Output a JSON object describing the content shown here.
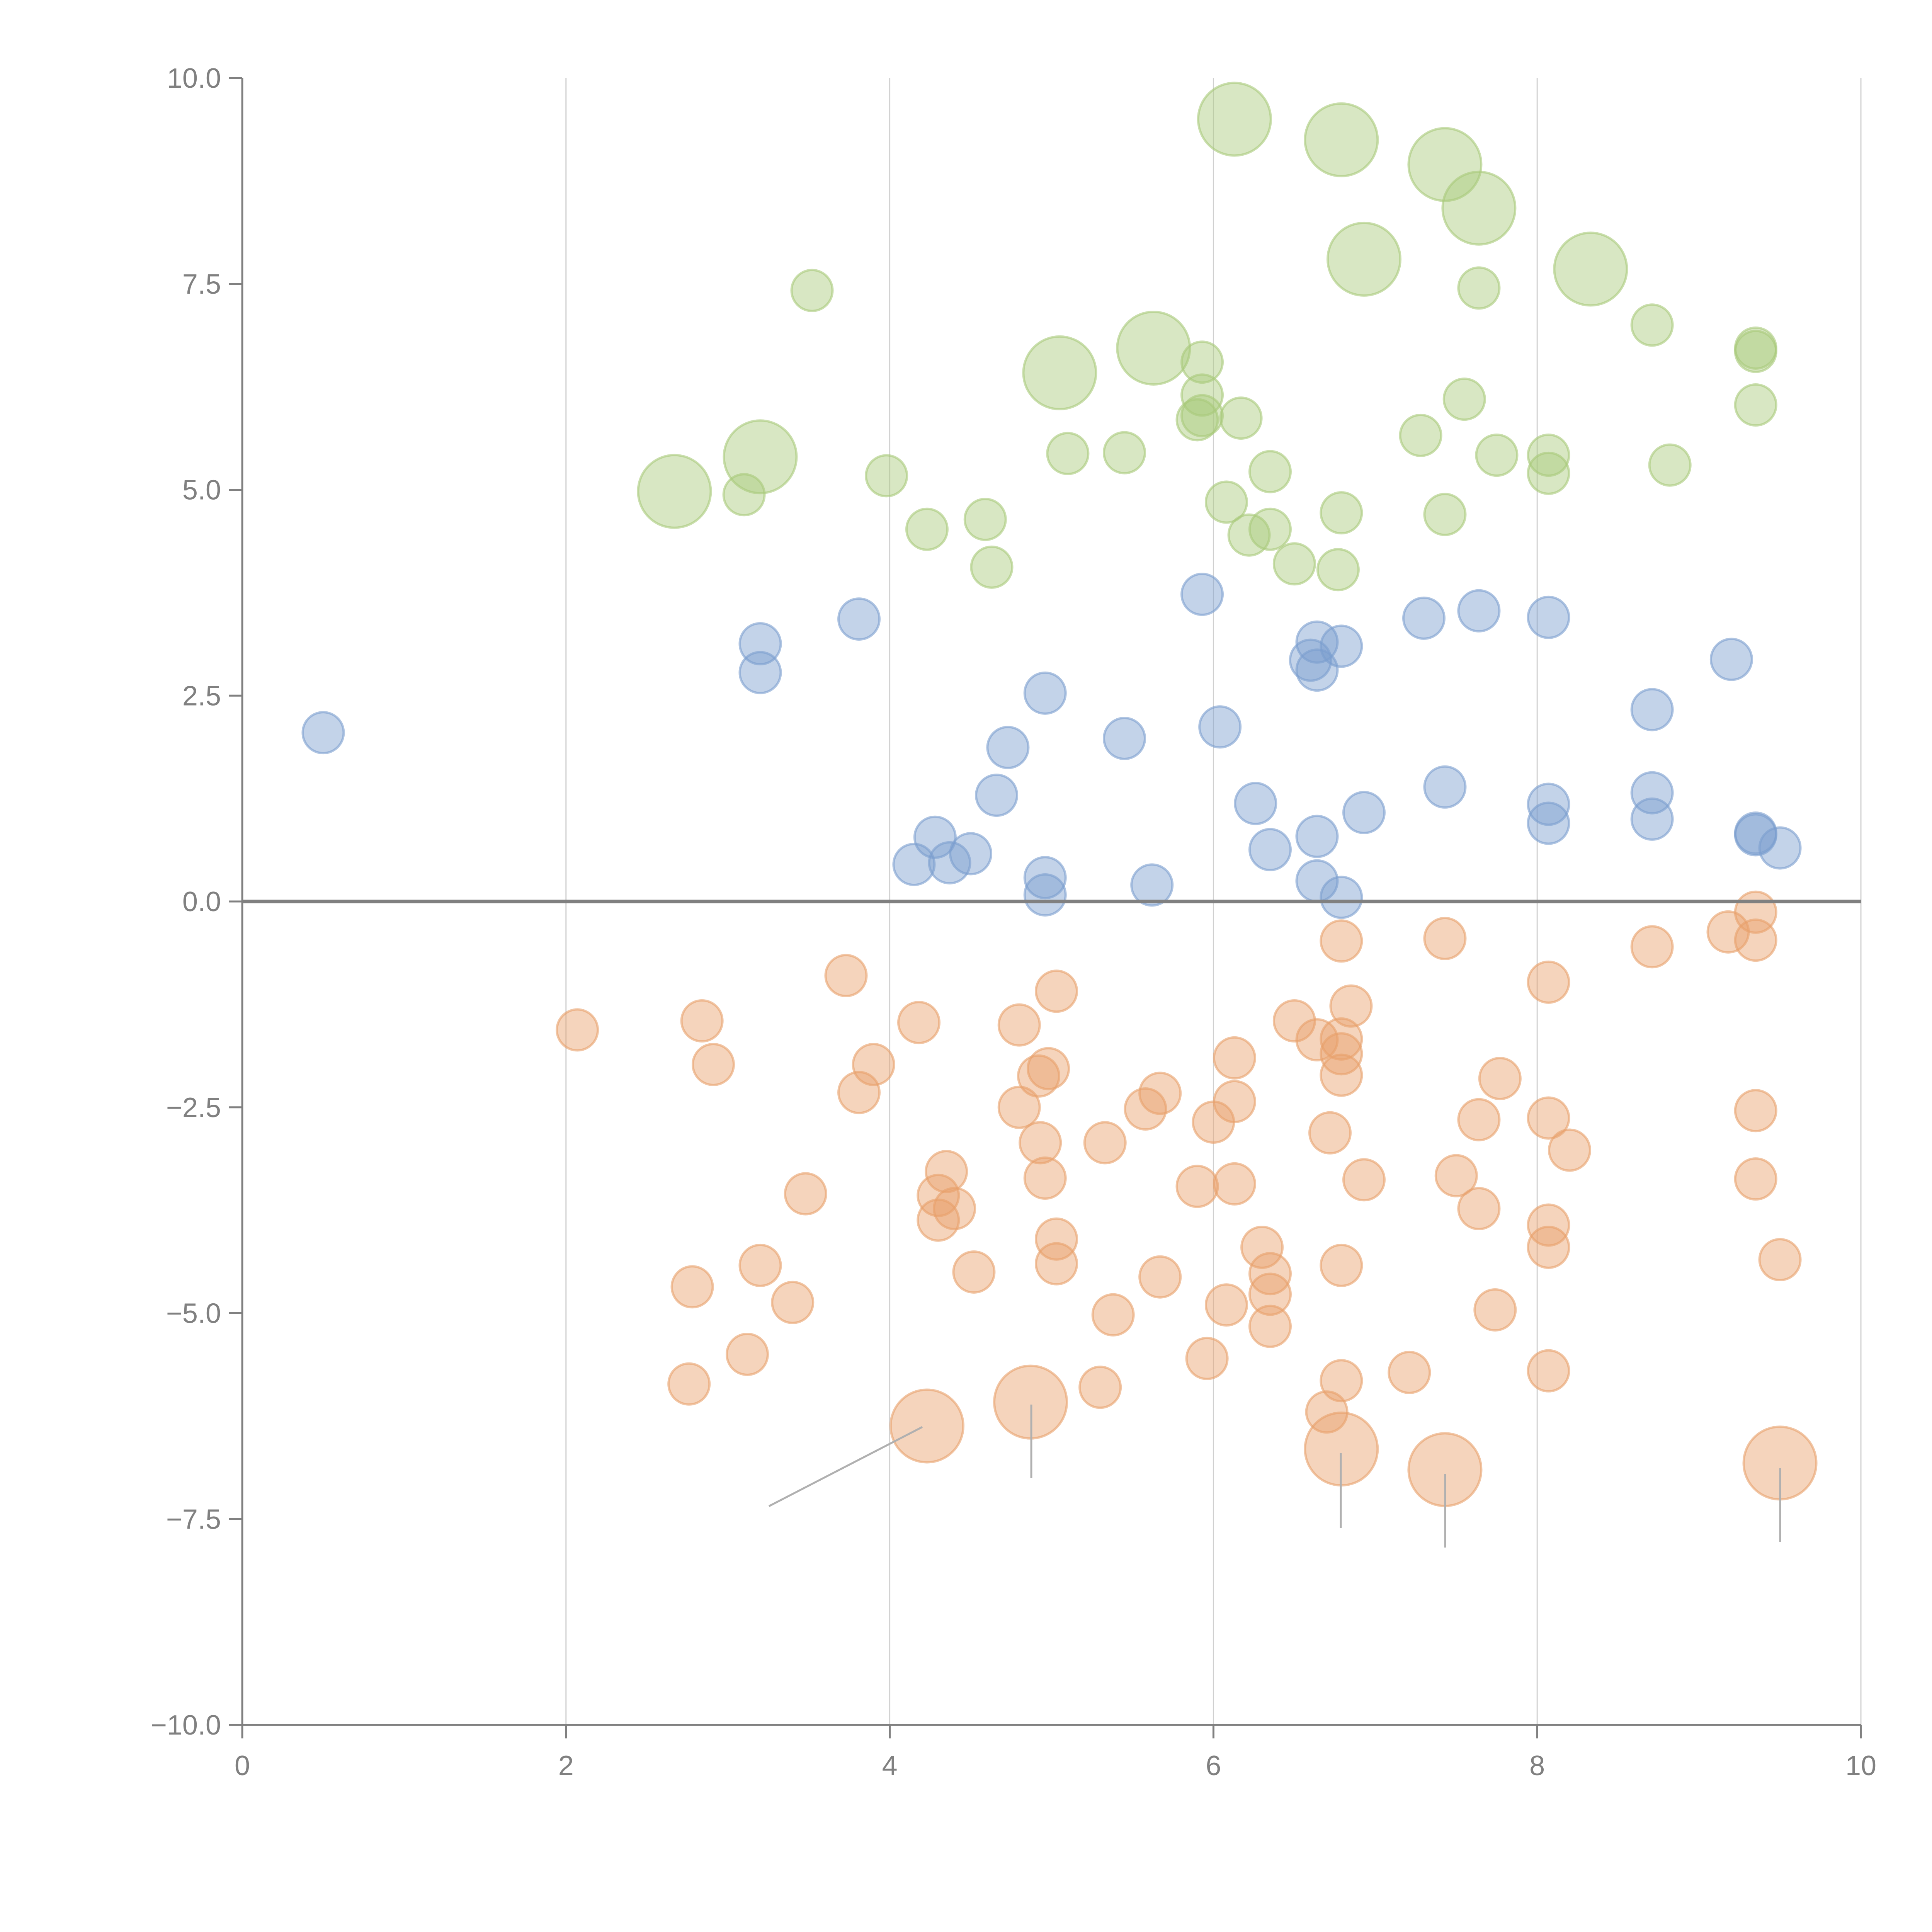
{
  "chart_data": {
    "type": "scatter",
    "title": "",
    "xlabel": "",
    "ylabel": "",
    "xlim": [
      0,
      10
    ],
    "ylim": [
      -10,
      10
    ],
    "x_ticks": [
      0,
      2,
      4,
      6,
      8,
      10
    ],
    "x_tick_labels": [
      "0",
      "2",
      "4",
      "6",
      "8",
      "10"
    ],
    "y_ticks": [
      10,
      7.5,
      5,
      2.5,
      0,
      -2.5,
      -5,
      -7.5,
      -10
    ],
    "y_tick_labels": [
      "10.0",
      "7.5",
      "5.0",
      "2.5",
      "0.0",
      "−2.5",
      "−5.0",
      "−7.5",
      "−10.0"
    ],
    "grid": "vertical at x ticks",
    "reference_line": {
      "y": 0
    },
    "legend": "none",
    "series": [
      {
        "name": "green",
        "color": "#a9c97a",
        "points": [
          [
            6.13,
            9.5,
            2
          ],
          [
            6.79,
            9.25,
            2
          ],
          [
            7.43,
            8.95,
            2
          ],
          [
            7.64,
            8.42,
            2
          ],
          [
            6.93,
            7.8,
            2
          ],
          [
            8.33,
            7.68,
            2
          ],
          [
            5.63,
            6.72,
            2
          ],
          [
            5.05,
            6.42,
            2
          ],
          [
            3.2,
            5.4,
            2
          ],
          [
            2.67,
            4.98,
            2
          ],
          [
            3.52,
            7.42,
            1
          ],
          [
            7.64,
            7.45,
            1
          ],
          [
            8.71,
            7.0,
            1
          ],
          [
            9.35,
            6.72,
            1
          ],
          [
            9.35,
            6.68,
            1
          ],
          [
            5.93,
            6.55,
            1
          ],
          [
            9.35,
            6.03,
            1
          ],
          [
            5.93,
            6.15,
            1
          ],
          [
            7.55,
            6.1,
            1
          ],
          [
            6.17,
            5.87,
            1
          ],
          [
            5.9,
            5.85,
            1
          ],
          [
            5.93,
            5.9,
            1
          ],
          [
            5.1,
            5.44,
            1
          ],
          [
            5.45,
            5.45,
            1
          ],
          [
            7.28,
            5.66,
            1
          ],
          [
            7.75,
            5.42,
            1
          ],
          [
            8.07,
            5.42,
            1
          ],
          [
            8.07,
            5.2,
            1
          ],
          [
            8.82,
            5.3,
            1
          ],
          [
            6.35,
            5.22,
            1
          ],
          [
            3.98,
            5.17,
            1
          ],
          [
            3.1,
            4.94,
            1
          ],
          [
            6.08,
            4.85,
            1
          ],
          [
            6.79,
            4.72,
            1
          ],
          [
            7.43,
            4.7,
            1
          ],
          [
            4.59,
            4.64,
            1
          ],
          [
            4.23,
            4.52,
            1
          ],
          [
            6.35,
            4.52,
            1
          ],
          [
            6.22,
            4.45,
            1
          ],
          [
            6.5,
            4.1,
            1
          ],
          [
            6.77,
            4.03,
            1
          ],
          [
            4.63,
            4.06,
            1
          ]
        ]
      },
      {
        "name": "blue",
        "color": "#7b9ecf",
        "points": [
          [
            0.5,
            2.05,
            1
          ],
          [
            3.2,
            3.13,
            1
          ],
          [
            3.2,
            2.78,
            1
          ],
          [
            3.81,
            3.43,
            1
          ],
          [
            5.93,
            3.73,
            1
          ],
          [
            7.3,
            3.44,
            1
          ],
          [
            7.64,
            3.53,
            1
          ],
          [
            8.07,
            3.45,
            1
          ],
          [
            6.64,
            3.15,
            1
          ],
          [
            6.79,
            3.1,
            1
          ],
          [
            6.6,
            2.93,
            1
          ],
          [
            6.64,
            2.81,
            1
          ],
          [
            9.2,
            2.94,
            1
          ],
          [
            4.96,
            2.53,
            1
          ],
          [
            8.71,
            2.33,
            1
          ],
          [
            6.04,
            2.12,
            1
          ],
          [
            5.45,
            1.98,
            1
          ],
          [
            4.73,
            1.87,
            1
          ],
          [
            4.66,
            1.29,
            1
          ],
          [
            7.43,
            1.39,
            1
          ],
          [
            8.71,
            1.32,
            1
          ],
          [
            6.26,
            1.19,
            1
          ],
          [
            8.07,
            1.18,
            1
          ],
          [
            6.93,
            1.08,
            1
          ],
          [
            8.71,
            1.0,
            1
          ],
          [
            8.07,
            0.95,
            1
          ],
          [
            9.35,
            0.83,
            1
          ],
          [
            9.35,
            0.81,
            1
          ],
          [
            4.28,
            0.78,
            1
          ],
          [
            6.64,
            0.79,
            1
          ],
          [
            4.5,
            0.58,
            1
          ],
          [
            6.35,
            0.63,
            1
          ],
          [
            9.5,
            0.65,
            1
          ],
          [
            4.15,
            0.45,
            1
          ],
          [
            4.37,
            0.47,
            1
          ],
          [
            4.96,
            0.29,
            1
          ],
          [
            6.64,
            0.25,
            1
          ],
          [
            5.62,
            0.2,
            1
          ],
          [
            4.96,
            0.08,
            1
          ],
          [
            6.79,
            0.05,
            1
          ]
        ]
      },
      {
        "name": "orange",
        "color": "#e8a06a",
        "points": [
          [
            9.35,
            -0.13,
            1
          ],
          [
            9.18,
            -0.37,
            1
          ],
          [
            9.35,
            -0.47,
            1
          ],
          [
            6.79,
            -0.48,
            1
          ],
          [
            7.43,
            -0.45,
            1
          ],
          [
            8.71,
            -0.55,
            1
          ],
          [
            3.73,
            -0.9,
            1
          ],
          [
            8.07,
            -0.98,
            1
          ],
          [
            5.03,
            -1.09,
            1
          ],
          [
            6.85,
            -1.27,
            1
          ],
          [
            2.07,
            -1.56,
            1
          ],
          [
            2.84,
            -1.45,
            1
          ],
          [
            4.18,
            -1.47,
            1
          ],
          [
            4.8,
            -1.5,
            1
          ],
          [
            6.5,
            -1.45,
            1
          ],
          [
            6.79,
            -1.67,
            1
          ],
          [
            6.64,
            -1.68,
            1
          ],
          [
            6.79,
            -1.85,
            1
          ],
          [
            6.13,
            -1.9,
            1
          ],
          [
            2.91,
            -1.98,
            1
          ],
          [
            3.9,
            -1.98,
            1
          ],
          [
            4.98,
            -2.03,
            1
          ],
          [
            4.92,
            -2.12,
            1
          ],
          [
            6.79,
            -2.11,
            1
          ],
          [
            7.77,
            -2.15,
            1
          ],
          [
            3.81,
            -2.32,
            1
          ],
          [
            5.67,
            -2.33,
            1
          ],
          [
            6.13,
            -2.43,
            1
          ],
          [
            4.8,
            -2.5,
            1
          ],
          [
            5.58,
            -2.52,
            1
          ],
          [
            9.35,
            -2.54,
            1
          ],
          [
            7.64,
            -2.65,
            1
          ],
          [
            8.07,
            -2.63,
            1
          ],
          [
            6.0,
            -2.68,
            1
          ],
          [
            6.72,
            -2.81,
            1
          ],
          [
            4.93,
            -2.93,
            1
          ],
          [
            5.33,
            -2.93,
            1
          ],
          [
            8.2,
            -3.02,
            1
          ],
          [
            4.35,
            -3.28,
            1
          ],
          [
            4.96,
            -3.36,
            1
          ],
          [
            9.35,
            -3.37,
            1
          ],
          [
            6.93,
            -3.38,
            1
          ],
          [
            7.5,
            -3.33,
            1
          ],
          [
            6.13,
            -3.43,
            1
          ],
          [
            5.9,
            -3.46,
            1
          ],
          [
            3.48,
            -3.55,
            1
          ],
          [
            4.3,
            -3.57,
            1
          ],
          [
            4.4,
            -3.73,
            1
          ],
          [
            7.64,
            -3.73,
            1
          ],
          [
            4.3,
            -3.87,
            1
          ],
          [
            8.07,
            -3.93,
            1
          ],
          [
            5.03,
            -4.1,
            1
          ],
          [
            8.07,
            -4.2,
            1
          ],
          [
            6.3,
            -4.2,
            1
          ],
          [
            9.5,
            -4.35,
            1
          ],
          [
            3.2,
            -4.42,
            1
          ],
          [
            5.03,
            -4.4,
            1
          ],
          [
            6.79,
            -4.42,
            1
          ],
          [
            4.52,
            -4.5,
            1
          ],
          [
            6.35,
            -4.52,
            1
          ],
          [
            5.67,
            -4.56,
            1
          ],
          [
            2.78,
            -4.68,
            1
          ],
          [
            6.35,
            -4.77,
            1
          ],
          [
            3.4,
            -4.87,
            1
          ],
          [
            6.08,
            -4.9,
            1
          ],
          [
            7.74,
            -4.96,
            1
          ],
          [
            5.38,
            -5.02,
            1
          ],
          [
            6.35,
            -5.16,
            1
          ],
          [
            3.12,
            -5.5,
            1
          ],
          [
            5.96,
            -5.55,
            1
          ],
          [
            8.07,
            -5.7,
            1
          ],
          [
            7.21,
            -5.72,
            1
          ],
          [
            6.79,
            -5.82,
            1
          ],
          [
            2.76,
            -5.86,
            1
          ],
          [
            5.3,
            -5.9,
            1
          ],
          [
            6.7,
            -6.2,
            1
          ],
          [
            4.23,
            -6.37,
            2
          ],
          [
            4.87,
            -6.08,
            2
          ],
          [
            6.79,
            -6.65,
            2
          ],
          [
            7.43,
            -6.9,
            2
          ],
          [
            9.5,
            -6.82,
            2
          ]
        ]
      }
    ]
  }
}
